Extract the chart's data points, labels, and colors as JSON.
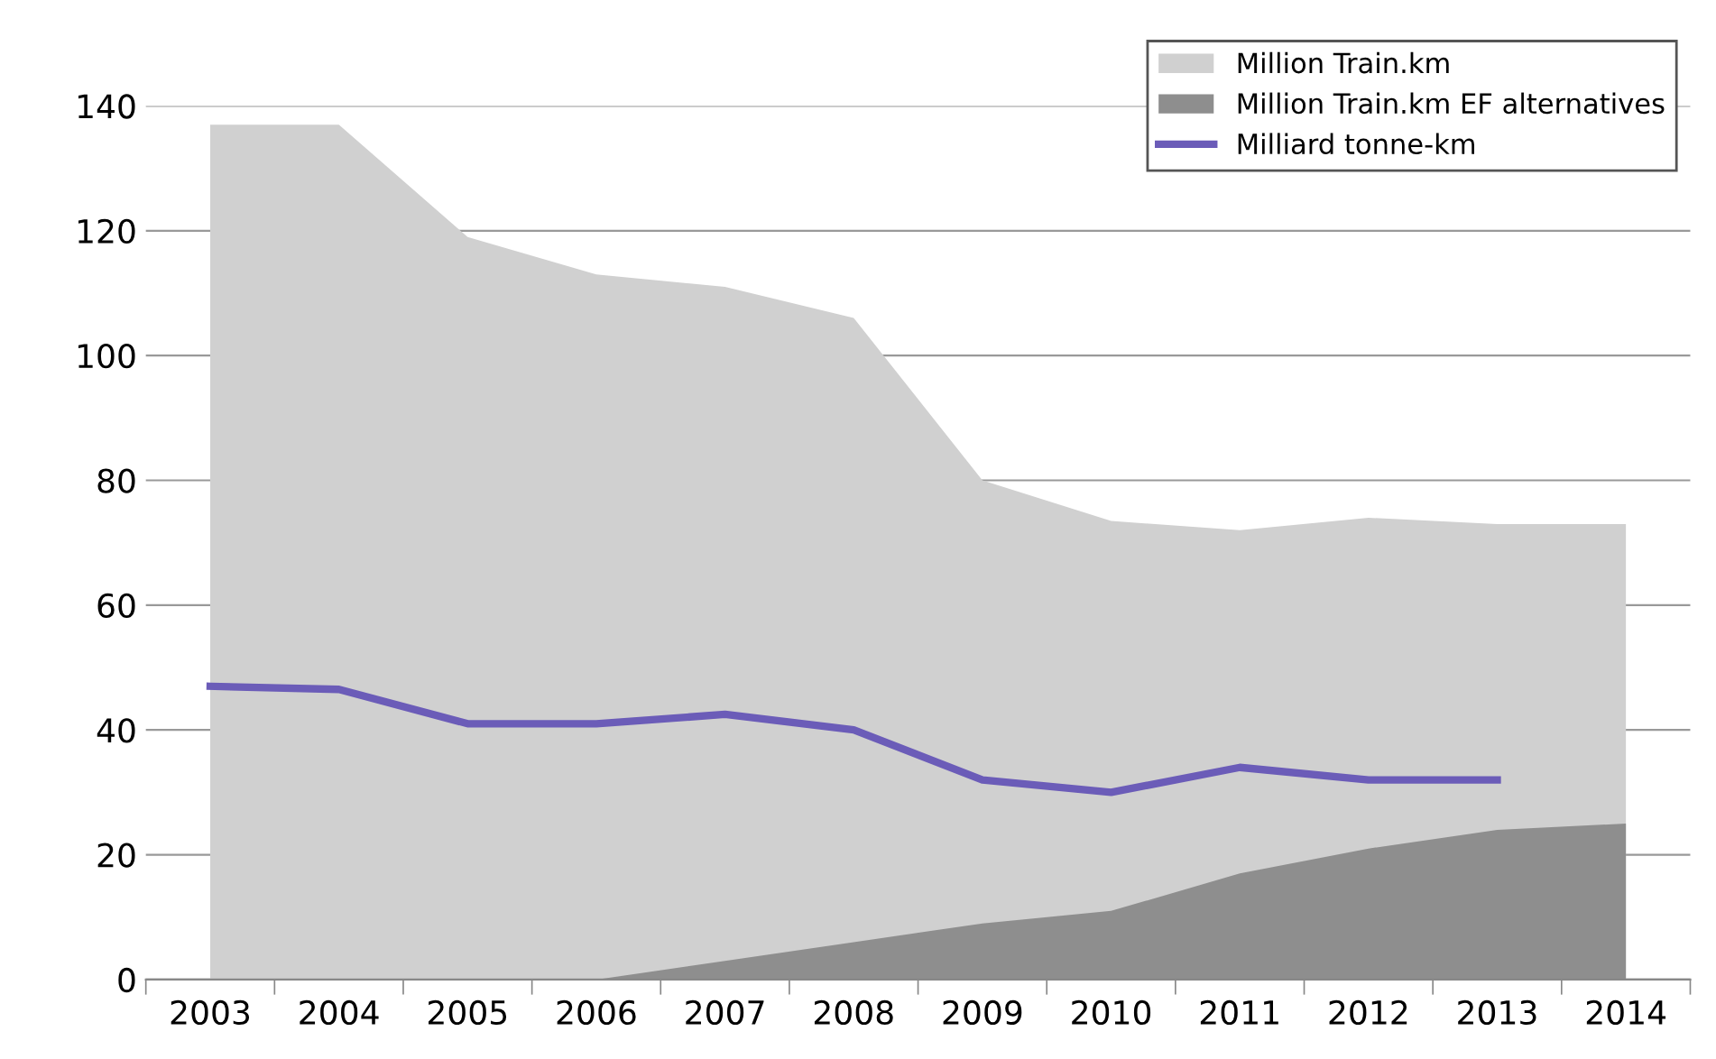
{
  "chart_data": {
    "type": "area",
    "categories": [
      "2003",
      "2004",
      "2005",
      "2006",
      "2007",
      "2008",
      "2009",
      "2010",
      "2011",
      "2012",
      "2013",
      "2014"
    ],
    "series": [
      {
        "name": "Million Train.km",
        "color": "#d0d0d0",
        "values": [
          137,
          137,
          119,
          113,
          111,
          106,
          80,
          73.5,
          72,
          74,
          73,
          73
        ]
      },
      {
        "name": "Million Train.km EF alternatives",
        "color": "#8e8e8e",
        "values": [
          0,
          0,
          0,
          0,
          3,
          6,
          9,
          11,
          17,
          21,
          24,
          25
        ]
      },
      {
        "name": "Milliard tonne-km",
        "type": "line",
        "color": "#6b5cb8",
        "values": [
          47,
          46.5,
          41,
          41,
          42.5,
          40,
          32,
          30,
          34,
          32,
          32,
          null
        ]
      }
    ],
    "ylim": [
      0,
      140
    ],
    "yticks": [
      0,
      20,
      40,
      60,
      80,
      100,
      120,
      140
    ],
    "grid": "y",
    "legend": "top right",
    "marker": "none",
    "line_style": "solid"
  }
}
